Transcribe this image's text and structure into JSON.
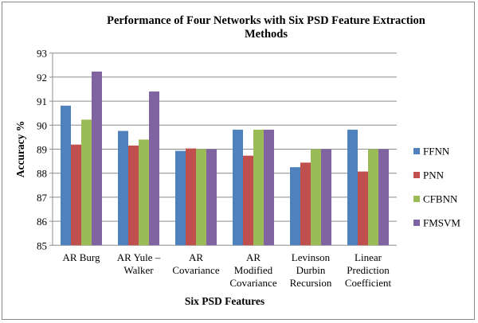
{
  "chart_data": {
    "type": "bar",
    "title": [
      "Performance of Four Networks with Six PSD Feature Extraction",
      "Methods"
    ],
    "xlabel": "Six PSD Features",
    "ylabel": "Accuracy %",
    "ylim": [
      85,
      93
    ],
    "yticks": [
      "85",
      "86",
      "87",
      "88",
      "89",
      "90",
      "91",
      "92",
      "93"
    ],
    "grid": true,
    "legend_position": "right",
    "categories": [
      [
        "AR Burg"
      ],
      [
        "AR Yule –",
        "Walker"
      ],
      [
        "AR",
        "Covariance"
      ],
      [
        "AR",
        "Modified",
        "Covariance"
      ],
      [
        "Levinson",
        "Durbin",
        "Recursion"
      ],
      [
        "Linear",
        "Prediction",
        "Coefficient"
      ]
    ],
    "series": [
      {
        "name": "FFNN",
        "color": "#4f81bd",
        "values": [
          90.81,
          89.76,
          88.93,
          89.81,
          88.25,
          89.81
        ]
      },
      {
        "name": "PNN",
        "color": "#c0504d",
        "values": [
          89.19,
          89.15,
          89.03,
          88.73,
          88.44,
          88.07
        ]
      },
      {
        "name": "CFBNN",
        "color": "#9bbb59",
        "values": [
          90.23,
          89.4,
          89.0,
          89.81,
          89.0,
          89.0
        ]
      },
      {
        "name": "FMSVM",
        "color": "#8064a2",
        "values": [
          92.23,
          91.4,
          89.0,
          89.81,
          89.0,
          89.0
        ]
      }
    ]
  }
}
